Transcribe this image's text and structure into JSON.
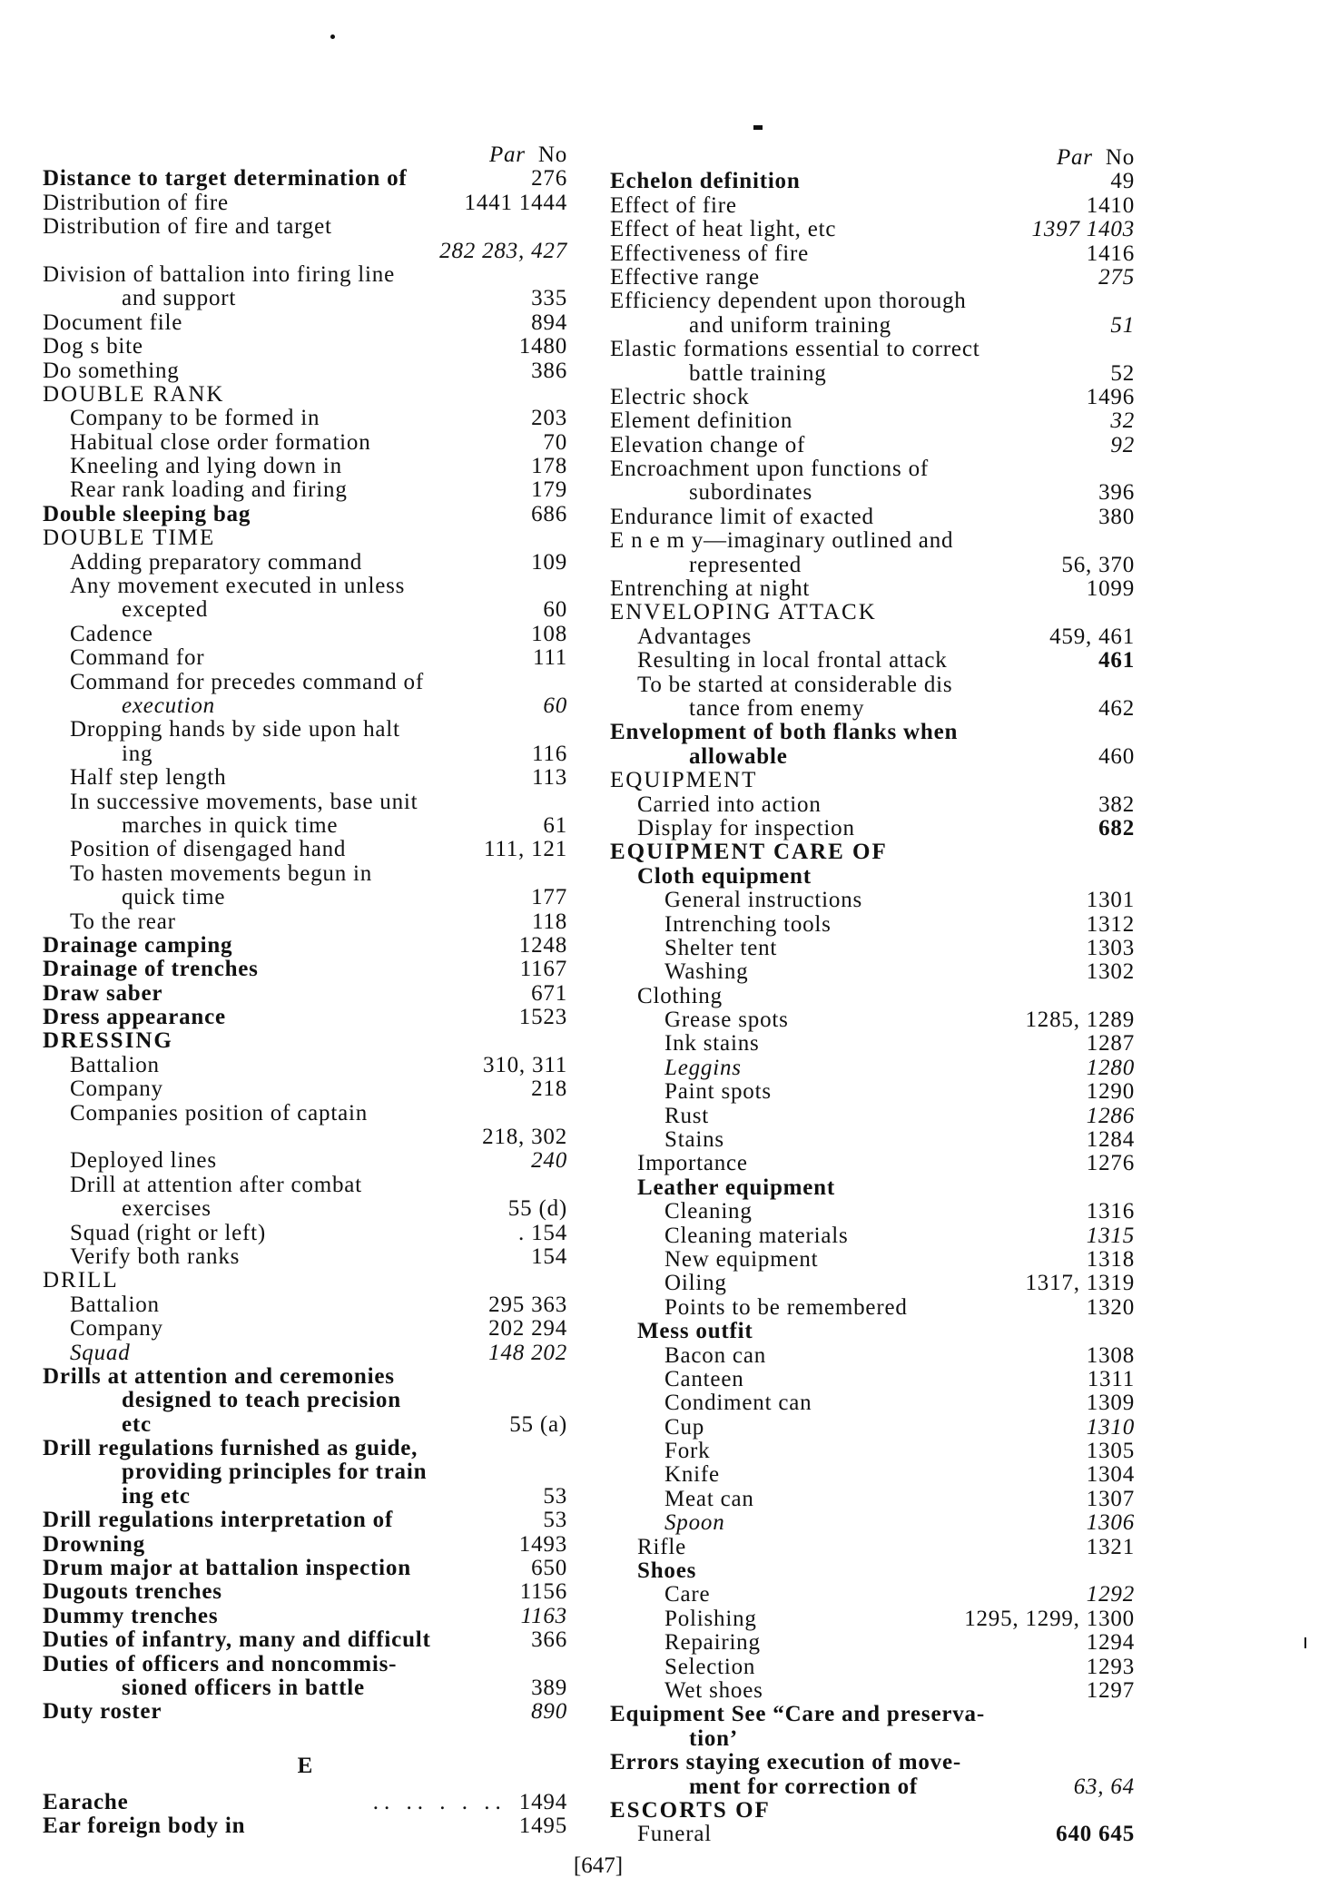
{
  "column_header": {
    "par": "Par",
    "no": "No"
  },
  "left": [
    {
      "text": "Distance to target  determination of",
      "num": "276",
      "level": 0,
      "bold": true
    },
    {
      "text": "Distribution of fire",
      "num": "1441 1444",
      "level": 0
    },
    {
      "text": "Distribution of fire and target",
      "num": "",
      "level": 0
    },
    {
      "text": "",
      "num": "282  283, 427",
      "level": 0,
      "wrap": true,
      "italicnum": true
    },
    {
      "text": "Division of battalion into firing line",
      "num": "",
      "level": 0
    },
    {
      "text": "and support",
      "num": "335",
      "level": 0,
      "wrap": true
    },
    {
      "text": "Document  file",
      "num": "894",
      "level": 0
    },
    {
      "text": "Dog s bite",
      "num": "1480",
      "level": 0
    },
    {
      "text": "Do something",
      "num": "386",
      "level": 0
    },
    {
      "text": "DOUBLE RANK",
      "num": "",
      "level": 0,
      "head": true
    },
    {
      "text": "Company to be formed in",
      "num": "203",
      "level": 1
    },
    {
      "text": "Habitual close order formation",
      "num": "70",
      "level": 1
    },
    {
      "text": "Kneeling and lying down in",
      "num": "178",
      "level": 1
    },
    {
      "text": "Rear rank loading and firing",
      "num": "179",
      "level": 1
    },
    {
      "text": "Double sleeping bag",
      "num": "686",
      "level": 0,
      "bold": true
    },
    {
      "text": "DOUBLE TIME",
      "num": "",
      "level": 0,
      "head": true
    },
    {
      "text": "Adding preparatory command",
      "num": "109",
      "level": 1
    },
    {
      "text": "Any movement executed in  unless",
      "num": "",
      "level": 1
    },
    {
      "text": "excepted",
      "num": "60",
      "level": 1,
      "wrap": true
    },
    {
      "text": "Cadence",
      "num": "108",
      "level": 1
    },
    {
      "text": "Command for",
      "num": "111",
      "level": 1
    },
    {
      "text": "Command for precedes command of",
      "num": "",
      "level": 1
    },
    {
      "text": "execution",
      "num": "60",
      "level": 1,
      "wrap": true,
      "italic": true
    },
    {
      "text": "Dropping hands by side upon halt",
      "num": "",
      "level": 1
    },
    {
      "text": "ing",
      "num": "116",
      "level": 1,
      "wrap": true
    },
    {
      "text": "Half step  length",
      "num": "113",
      "level": 1
    },
    {
      "text": "In successive movements, base unit",
      "num": "",
      "level": 1
    },
    {
      "text": "marches in quick time",
      "num": "61",
      "level": 1,
      "wrap": true
    },
    {
      "text": "Position of disengaged hand",
      "num": "111,  121",
      "level": 1
    },
    {
      "text": "To  hasten  movements  begun  in",
      "num": "",
      "level": 1
    },
    {
      "text": "quick time",
      "num": "177",
      "level": 1,
      "wrap": true
    },
    {
      "text": "To the rear",
      "num": "118",
      "level": 1
    },
    {
      "text": "Drainage  camping",
      "num": "1248",
      "level": 0,
      "bold": true
    },
    {
      "text": "Drainage of trenches",
      "num": "1167",
      "level": 0,
      "bold": true
    },
    {
      "text": "Draw  saber",
      "num": "671",
      "level": 0,
      "bold": true
    },
    {
      "text": "Dress  appearance",
      "num": "1523",
      "level": 0,
      "bold": true
    },
    {
      "text": "DRESSING",
      "num": "",
      "level": 0,
      "head": true,
      "bold": true
    },
    {
      "text": "Battalion",
      "num": "310, 311",
      "level": 1
    },
    {
      "text": "Company",
      "num": "218",
      "level": 1
    },
    {
      "text": "Companies  position of captain",
      "num": "",
      "level": 1
    },
    {
      "text": "",
      "num": "218, 302",
      "level": 1,
      "wrap": true
    },
    {
      "text": "Deployed lines",
      "num": "240",
      "level": 1,
      "italicnum": true
    },
    {
      "text": "Drill  at  attention  after  combat",
      "num": "",
      "level": 1
    },
    {
      "text": "exercises",
      "num": "55 (d)",
      "level": 1,
      "wrap": true
    },
    {
      "text": "Squad (right or left)",
      "num": ".    154",
      "level": 1
    },
    {
      "text": "Verify both ranks",
      "num": "154",
      "level": 1
    },
    {
      "text": "DRILL",
      "num": "",
      "level": 0,
      "head": true
    },
    {
      "text": "Battalion",
      "num": "295 363",
      "level": 1
    },
    {
      "text": "Company",
      "num": "202 294",
      "level": 1
    },
    {
      "text": "Squad",
      "num": "148 202",
      "level": 1,
      "italic": true
    },
    {
      "text": "Drills  at  attention  and  ceremonies",
      "num": "",
      "level": 0,
      "bold": true
    },
    {
      "text": "designed  to  teach  precision",
      "num": "",
      "level": 0,
      "wrap": true,
      "bold": true
    },
    {
      "text": "etc",
      "num": "55 (a)",
      "level": 0,
      "wrap": true,
      "bold": true
    },
    {
      "text": "Drill regulations furnished as guide,",
      "num": "",
      "level": 0,
      "bold": true
    },
    {
      "text": "providing  principles  for  train",
      "num": "",
      "level": 0,
      "wrap": true,
      "bold": true
    },
    {
      "text": "ing  etc",
      "num": "53",
      "level": 0,
      "wrap": true,
      "bold": true
    },
    {
      "text": "Drill regulations  interpretation of",
      "num": "53",
      "level": 0,
      "bold": true
    },
    {
      "text": "Drowning",
      "num": "1493",
      "level": 0,
      "bold": true
    },
    {
      "text": "Drum major at battalion inspection",
      "num": "650",
      "level": 0,
      "bold": true
    },
    {
      "text": "Dugouts  trenches",
      "num": "1156",
      "level": 0,
      "bold": true
    },
    {
      "text": "Dummy trenches",
      "num": "1163",
      "level": 0,
      "bold": true,
      "italicnum": true
    },
    {
      "text": "Duties of infantry, many and difficult",
      "num": "366",
      "level": 0,
      "bold": true
    },
    {
      "text": "Duties  of  officers  and  noncommis-",
      "num": "",
      "level": 0,
      "bold": true
    },
    {
      "text": "sioned officers in battle",
      "num": "389",
      "level": 0,
      "wrap": true,
      "bold": true
    },
    {
      "text": "Duty roster",
      "num": "890",
      "level": 0,
      "bold": true,
      "italicnum": true
    }
  ],
  "e_section": {
    "heading": "E",
    "entries": [
      {
        "text": "Earache",
        "leaders": ".. .. . . ..",
        "num": "1494"
      },
      {
        "text": "Ear  foreign body in",
        "leaders": "",
        "num": "1495"
      }
    ]
  },
  "right": [
    {
      "text": "Echelon definition",
      "num": "49",
      "level": 0,
      "bold": true
    },
    {
      "text": "Effect  of  fire",
      "num": "1410",
      "level": 0
    },
    {
      "text": "Effect  of  heat  light, etc",
      "num": "1397 1403",
      "level": 0,
      "italicnum": true
    },
    {
      "text": "Effectiveness  of  fire",
      "num": "1416",
      "level": 0
    },
    {
      "text": "Effective range",
      "num": "275",
      "level": 0,
      "italicnum": true
    },
    {
      "text": "Efficiency  dependent  upon  thorough",
      "num": "",
      "level": 0
    },
    {
      "text": "and  uniform  training",
      "num": "51",
      "level": 0,
      "wrap": true,
      "italicnum": true
    },
    {
      "text": "Elastic formations essential to correct",
      "num": "",
      "level": 0
    },
    {
      "text": "battle  training",
      "num": "52",
      "level": 0,
      "wrap": true
    },
    {
      "text": "Electric  shock",
      "num": "1496",
      "level": 0
    },
    {
      "text": "Element  definition",
      "num": "32",
      "level": 0,
      "italicnum": true
    },
    {
      "text": "Elevation  change  of",
      "num": "92",
      "level": 0,
      "italicnum": true
    },
    {
      "text": "Encroachment   upon   functions   of",
      "num": "",
      "level": 0
    },
    {
      "text": "subordinates",
      "num": "396",
      "level": 0,
      "wrap": true
    },
    {
      "text": "Endurance  limit of  exacted",
      "num": "380",
      "level": 0
    },
    {
      "text": "E n e m y—imaginary   outlined   and",
      "num": "",
      "level": 0
    },
    {
      "text": "represented",
      "num": "56,  370",
      "level": 0,
      "wrap": true
    },
    {
      "text": "Entrenching  at  night",
      "num": "1099",
      "level": 0
    },
    {
      "text": "ENVELOPING  ATTACK",
      "num": "",
      "level": 0,
      "head": true
    },
    {
      "text": "Advantages",
      "num": "459,  461",
      "level": 1
    },
    {
      "text": "Resulting in local frontal attack",
      "num": "461",
      "level": 1,
      "boldnum": true
    },
    {
      "text": "To be started at considerable dis",
      "num": "",
      "level": 1
    },
    {
      "text": "tance from enemy",
      "num": "462",
      "level": 1,
      "wrap": true
    },
    {
      "text": "Envelopment  of  both  flanks  when",
      "num": "",
      "level": 0,
      "bold": true
    },
    {
      "text": "allowable",
      "num": "460",
      "level": 0,
      "wrap": true,
      "bold": true
    },
    {
      "text": "EQUIPMENT",
      "num": "",
      "level": 0,
      "head": true
    },
    {
      "text": "Carried into action",
      "num": "382",
      "level": 1
    },
    {
      "text": "Display  for  inspection",
      "num": "682",
      "level": 1,
      "boldnum": true
    },
    {
      "text": "EQUIPMENT  CARE OF",
      "num": "",
      "level": 0,
      "head": true,
      "bold": true
    },
    {
      "text": "Cloth equipment",
      "num": "",
      "level": 1,
      "bold": true
    },
    {
      "text": "General  instructions",
      "num": "1301",
      "level": 2
    },
    {
      "text": "Intrenching  tools",
      "num": "1312",
      "level": 2
    },
    {
      "text": "Shelter tent",
      "num": "1303",
      "level": 2
    },
    {
      "text": "Washing",
      "num": "1302",
      "level": 2
    },
    {
      "text": "Clothing",
      "num": "",
      "level": 1
    },
    {
      "text": "Grease  spots",
      "num": "1285,  1289",
      "level": 2
    },
    {
      "text": "Ink  stains",
      "num": "1287",
      "level": 2
    },
    {
      "text": "Leggins",
      "num": "1280",
      "level": 2,
      "italic": true
    },
    {
      "text": "Paint  spots",
      "num": "1290",
      "level": 2
    },
    {
      "text": "Rust",
      "num": "1286",
      "level": 2,
      "italicnum": true
    },
    {
      "text": "Stains",
      "num": "1284",
      "level": 2
    },
    {
      "text": "Importance",
      "num": "1276",
      "level": 1
    },
    {
      "text": "Leather equipment",
      "num": "",
      "level": 1,
      "bold": true
    },
    {
      "text": "Cleaning",
      "num": "1316",
      "level": 2
    },
    {
      "text": "Cleaning  materials",
      "num": "1315",
      "level": 2,
      "italicnum": true
    },
    {
      "text": "New  equipment",
      "num": "1318",
      "level": 2
    },
    {
      "text": "Oiling",
      "num": "1317,  1319",
      "level": 2
    },
    {
      "text": "Points  to  be  remembered",
      "num": "1320",
      "level": 2
    },
    {
      "text": "Mess outfit",
      "num": "",
      "level": 1,
      "bold": true
    },
    {
      "text": "Bacon  can",
      "num": "1308",
      "level": 2
    },
    {
      "text": "Canteen",
      "num": "1311",
      "level": 2
    },
    {
      "text": "Condiment  can",
      "num": "1309",
      "level": 2
    },
    {
      "text": "Cup",
      "num": "1310",
      "level": 2,
      "italicnum": true
    },
    {
      "text": "Fork",
      "num": "1305",
      "level": 2
    },
    {
      "text": "Knife",
      "num": "1304",
      "level": 2
    },
    {
      "text": "Meat  can",
      "num": "1307",
      "level": 2
    },
    {
      "text": "Spoon",
      "num": "1306",
      "level": 2,
      "italic": true
    },
    {
      "text": "Rifle",
      "num": "1321",
      "level": 1
    },
    {
      "text": "Shoes",
      "num": "",
      "level": 1,
      "bold": true
    },
    {
      "text": "Care",
      "num": "1292",
      "level": 2,
      "italicnum": true
    },
    {
      "text": "Polishing",
      "num": "1295,  1299,  1300",
      "level": 2
    },
    {
      "text": "Repairing",
      "num": "1294",
      "level": 2
    },
    {
      "text": "Selection",
      "num": "1293",
      "level": 2
    },
    {
      "text": "Wet  shoes",
      "num": "1297",
      "level": 2
    },
    {
      "text": "Equipment  See  “Care  and  preserva-",
      "num": "",
      "level": 0,
      "bold": true
    },
    {
      "text": "tion’",
      "num": "",
      "level": 0,
      "wrap": true,
      "bold": true
    },
    {
      "text": "Errors  staying  execution  of  move-",
      "num": "",
      "level": 0,
      "bold": true
    },
    {
      "text": "ment  for  correction  of",
      "num": "63,  64",
      "level": 0,
      "wrap": true,
      "bold": true,
      "italicnum": true
    },
    {
      "text": "ESCORTS OF",
      "num": "",
      "level": 0,
      "head": true,
      "bold": true
    },
    {
      "text": "Funeral",
      "num": "640 645",
      "level": 1,
      "boldnum": true
    }
  ],
  "page_number": "[647]"
}
